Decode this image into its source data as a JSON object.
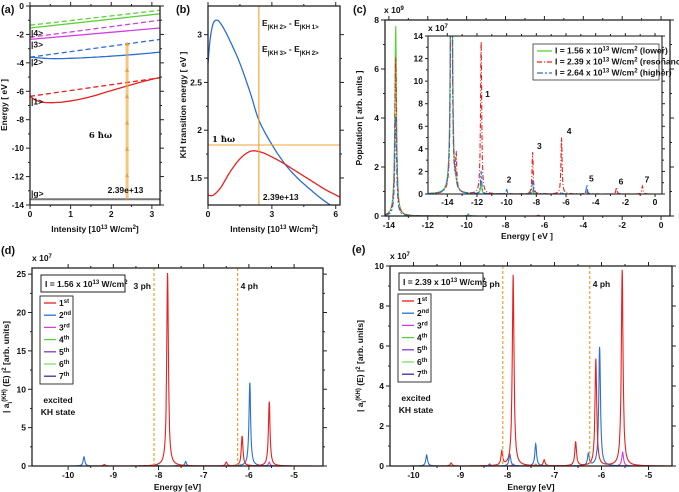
{
  "colors": {
    "orange": "#f0a030",
    "red": "#e8201e",
    "blue": "#2a6fd6",
    "magenta": "#d040e0",
    "green": "#5ad03a",
    "purple": "#8040c0",
    "lightgreen": "#80e060",
    "navy": "#3030a0",
    "gray": "#777777"
  },
  "chart_data": [
    {
      "panel": "(a)",
      "type": "line",
      "xlabel_parts": [
        "Intensity [10",
        "13",
        " W/cm",
        "2",
        "]"
      ],
      "ylabel": "Energy [ eV ]",
      "xlim": [
        0,
        3.2
      ],
      "ylim": [
        -14,
        0
      ],
      "xticks": [
        0,
        1,
        2,
        3
      ],
      "yticks": [
        0,
        -2,
        -4,
        -6,
        -8,
        -10,
        -12,
        -14
      ],
      "series": [
        {
          "label": "|4>",
          "color": "green",
          "style": "solid",
          "x": [
            0,
            3.2
          ],
          "y": [
            -1.55,
            -0.55
          ]
        },
        {
          "color": "green",
          "style": "dashed",
          "x": [
            0,
            3.2
          ],
          "y": [
            -1.35,
            -0.3
          ]
        },
        {
          "label": "|3>",
          "color": "magenta",
          "style": "solid",
          "x": [
            0,
            3.2
          ],
          "y": [
            -2.35,
            -1.55
          ]
        },
        {
          "color": "magenta",
          "style": "dashed",
          "x": [
            0,
            3.2
          ],
          "y": [
            -2.2,
            -1.0
          ]
        },
        {
          "label": "|2>",
          "color": "blue",
          "style": "solid",
          "x": [
            0,
            0.5,
            1,
            1.6,
            2.4,
            3.2
          ],
          "y": [
            -3.6,
            -3.7,
            -3.68,
            -3.6,
            -3.45,
            -3.25
          ]
        },
        {
          "color": "blue",
          "style": "dashed",
          "x": [
            0,
            3.2
          ],
          "y": [
            -3.6,
            -2.35
          ]
        },
        {
          "label": "|1>",
          "color": "red",
          "style": "solid",
          "x": [
            0,
            0.2,
            0.5,
            0.9,
            1.4,
            2,
            2.4,
            2.8,
            3.2
          ],
          "y": [
            -6.35,
            -6.7,
            -6.8,
            -6.72,
            -6.45,
            -5.95,
            -5.62,
            -5.3,
            -5.02
          ]
        },
        {
          "color": "red",
          "style": "dashed",
          "x": [
            0,
            3.2
          ],
          "y": [
            -6.35,
            -5.05
          ]
        },
        {
          "label": "|g>",
          "color": "gray",
          "style": "solid",
          "x": [
            0,
            3.2
          ],
          "y": [
            -13.6,
            -13.6
          ]
        }
      ],
      "photon_ladder": {
        "x": 2.39,
        "y": [
          -13.6,
          -11.9,
          -10.05,
          -8.2,
          -6.35,
          -4.5,
          -2.65
        ]
      },
      "annotation": "6 ħω",
      "intensity_marker": "2.39e+13"
    },
    {
      "panel": "(b)",
      "type": "line",
      "xlabel_parts": [
        "Intensity [10",
        "13",
        " W/cm",
        "2",
        "]"
      ],
      "ylabel": "KH transition energy [ eV ]",
      "xlim": [
        0,
        6.2
      ],
      "ylim": [
        1.217,
        3.3
      ],
      "xticks": [
        0,
        3,
        6
      ],
      "yticks": [
        1.5,
        2,
        2.5,
        3
      ],
      "series": [
        {
          "legend_parts": [
            "E",
            "|KH 2>",
            " - E",
            "|KH 1>"
          ],
          "color": "blue",
          "x": [
            0,
            0.1,
            0.25,
            0.45,
            0.7,
            1,
            1.5,
            2,
            2.4,
            3,
            3.6,
            4.2,
            4.8,
            5.4,
            6
          ],
          "y": [
            2.7,
            2.95,
            3.12,
            3.15,
            3.08,
            2.95,
            2.7,
            2.38,
            2.1,
            1.85,
            1.65,
            1.5,
            1.38,
            1.27,
            1.18
          ]
        },
        {
          "legend_parts": [
            "E",
            "|KH 3>",
            " - E",
            "|KH 2>"
          ],
          "color": "red",
          "x": [
            0,
            0.25,
            0.6,
            1,
            1.5,
            2,
            2.5,
            3,
            3.5,
            4,
            4.5,
            5,
            5.5,
            6.2
          ],
          "y": [
            1.32,
            1.32,
            1.4,
            1.55,
            1.7,
            1.78,
            1.77,
            1.72,
            1.66,
            1.59,
            1.52,
            1.45,
            1.38,
            1.3
          ]
        }
      ],
      "hline": {
        "y": 1.845,
        "label": "1 ħω"
      },
      "vline": {
        "x": 2.39,
        "label": "2.39e+13"
      }
    },
    {
      "panel": "(c)",
      "type": "line",
      "xlabel": "Energy [ eV ]",
      "ylabel": "Population [ arb. units ]",
      "multiplier": [
        "x 10",
        "9"
      ],
      "xlim": [
        -14.2,
        0.46
      ],
      "ylim": [
        0,
        8
      ],
      "xticks": [
        -14,
        -12,
        -10,
        -8,
        -6,
        -4,
        -2,
        0
      ],
      "yticks": [
        0,
        2,
        4,
        6,
        8
      ],
      "series": [
        {
          "name_parts": [
            "I = 1.56 x 10",
            "13",
            " W/cm",
            "2",
            "  (lower)"
          ],
          "color": "green",
          "style": "solid",
          "peaks": [
            [
              -13.65,
              7.8
            ],
            [
              -9.9,
              0.05
            ]
          ]
        },
        {
          "name_parts": [
            "I = 2.39 x 10",
            "13",
            " W/cm",
            "2",
            "  (resonance)"
          ],
          "color": "red",
          "style": "dashdot",
          "peaks": [
            [
              -13.65,
              6.5
            ],
            [
              -6.3,
              0.03
            ]
          ]
        },
        {
          "name_parts": [
            "I = 2.64 x 10",
            "13",
            " W/cm",
            "2",
            "  (higher)"
          ],
          "color": "blue",
          "style": "dashdot2",
          "peaks": [
            [
              -13.65,
              4.1
            ],
            [
              -9.9,
              0.08
            ]
          ]
        }
      ],
      "inset": {
        "multiplier": [
          "x 10",
          "7"
        ],
        "xlim": [
          -15.3,
          0.47
        ],
        "ylim": [
          0,
          14
        ],
        "xticks": [
          -14,
          -12,
          -10,
          -8,
          -6,
          -4,
          -2,
          0
        ],
        "yticks": [
          0,
          2,
          4,
          6,
          8,
          10,
          12,
          14
        ],
        "series_peaks": [
          [
            [
              -13.72,
              60
            ],
            [
              -13.4,
              0.3
            ],
            [
              -11.72,
              1.0
            ],
            [
              -8.25,
              0.3
            ]
          ],
          [
            [
              -13.72,
              40
            ],
            [
              -13.4,
              3
            ],
            [
              -11.72,
              13.5
            ],
            [
              -8.25,
              3.7
            ],
            [
              -6.3,
              5.0
            ],
            [
              -4.6,
              0.3
            ],
            [
              -2.6,
              0.6
            ],
            [
              -0.85,
              0.7
            ]
          ],
          [
            [
              -13.72,
              50
            ],
            [
              -13.45,
              1.2
            ],
            [
              -11.72,
              2.0
            ],
            [
              -10,
              0.4
            ],
            [
              -8.25,
              1.2
            ],
            [
              -6.3,
              0.2
            ],
            [
              -4.6,
              0.8
            ]
          ]
        ],
        "peak_labels": [
          {
            "text": "1",
            "x": -11.45,
            "y": 8.6
          },
          {
            "text": "2",
            "x": -10,
            "y": 1.0
          },
          {
            "text": "3",
            "x": -7.95,
            "y": 4.0
          },
          {
            "text": "4",
            "x": -5.95,
            "y": 5.3
          },
          {
            "text": "5",
            "x": -4.45,
            "y": 1.1
          },
          {
            "text": "6",
            "x": -2.45,
            "y": 0.85
          },
          {
            "text": "7",
            "x": -0.7,
            "y": 1.0
          }
        ]
      }
    },
    {
      "panel": "(d)",
      "type": "line",
      "xlabel": "Energy [eV]",
      "ylabel_parts": [
        "| a",
        "i",
        "(KH)",
        " (E) |",
        "2",
        " [arb. units]"
      ],
      "multiplier": [
        "x 10",
        "7"
      ],
      "xlim": [
        -10.8,
        -4.36
      ],
      "ylim": [
        0,
        25.8
      ],
      "xticks": [
        -10,
        -9,
        -8,
        -7,
        -6,
        -5
      ],
      "yticks": [
        0,
        5,
        10,
        15,
        20,
        25
      ],
      "intensity_parts": [
        "I = 1.56 x 10",
        "13",
        " W/cm",
        "2"
      ],
      "vlines": [
        {
          "x": -8.1,
          "label": "3 ph"
        },
        {
          "x": -6.25,
          "label": "4 ph"
        }
      ],
      "note": [
        "excited",
        "KH state"
      ],
      "series": [
        {
          "name": "1",
          "sup": "st",
          "color": "red",
          "peaks": [
            [
              -9.2,
              0.2
            ],
            [
              -7.8,
              25.2
            ],
            [
              -6.5,
              0.5
            ],
            [
              -6.15,
              3.9
            ],
            [
              -5.55,
              8.4
            ]
          ]
        },
        {
          "name": "2",
          "sup": "nd",
          "color": "blue",
          "peaks": [
            [
              -9.65,
              1.2
            ],
            [
              -8.05,
              0.2
            ],
            [
              -7.4,
              0.6
            ],
            [
              -5.98,
              10.9
            ]
          ]
        },
        {
          "name": "3",
          "sup": "rd",
          "color": "magenta",
          "peaks": [
            [
              -5.55,
              0.5
            ]
          ]
        },
        {
          "name": "4",
          "sup": "th",
          "color": "green",
          "peaks": []
        },
        {
          "name": "5",
          "sup": "th",
          "color": "purple",
          "peaks": [
            [
              -7.6,
              0.05
            ]
          ]
        },
        {
          "name": "6",
          "sup": "th",
          "color": "lightgreen",
          "peaks": []
        },
        {
          "name": "7",
          "sup": "th",
          "color": "navy",
          "peaks": []
        }
      ]
    },
    {
      "panel": "(e)",
      "type": "line",
      "xlabel": "Energy [eV]",
      "ylabel_parts": [
        "| a",
        "i",
        "(KH)",
        " (E) |",
        "2",
        " [arb. units]"
      ],
      "multiplier": [
        "x 10",
        "7"
      ],
      "xlim": [
        -10.5,
        -4.5
      ],
      "ylim": [
        0,
        10
      ],
      "xticks": [
        -10,
        -9,
        -8,
        -7,
        -6,
        -5
      ],
      "yticks": [
        0,
        2,
        4,
        6,
        8,
        10
      ],
      "intensity_parts": [
        "I = 2.39 x 10",
        "13",
        " W/cm",
        "2"
      ],
      "vlines": [
        {
          "x": -8.1,
          "label": "3 ph"
        },
        {
          "x": -6.25,
          "label": "4 ph"
        }
      ],
      "note": [
        "excited",
        "KH state"
      ],
      "series": [
        {
          "name": "1",
          "sup": "st",
          "color": "red",
          "peaks": [
            [
              -9.2,
              0.15
            ],
            [
              -8.12,
              0.7
            ],
            [
              -7.88,
              9.55
            ],
            [
              -7.22,
              0.3
            ],
            [
              -6.55,
              1.2
            ],
            [
              -6.12,
              5.35
            ],
            [
              -5.56,
              9.8
            ]
          ]
        },
        {
          "name": "2",
          "sup": "nd",
          "color": "blue",
          "peaks": [
            [
              -9.72,
              0.55
            ],
            [
              -8.38,
              0.1
            ],
            [
              -7.95,
              0.6
            ],
            [
              -7.4,
              1.1
            ],
            [
              -6.28,
              0.6
            ],
            [
              -6.04,
              5.95
            ]
          ]
        },
        {
          "name": "3",
          "sup": "rd",
          "color": "magenta",
          "peaks": [
            [
              -7.88,
              0.1
            ],
            [
              -5.55,
              0.7
            ]
          ]
        },
        {
          "name": "4",
          "sup": "th",
          "color": "green",
          "peaks": [
            [
              -7.4,
              0.1
            ]
          ]
        },
        {
          "name": "5",
          "sup": "th",
          "color": "purple",
          "peaks": []
        },
        {
          "name": "6",
          "sup": "th",
          "color": "lightgreen",
          "peaks": []
        },
        {
          "name": "7",
          "sup": "th",
          "color": "navy",
          "peaks": []
        }
      ]
    }
  ]
}
